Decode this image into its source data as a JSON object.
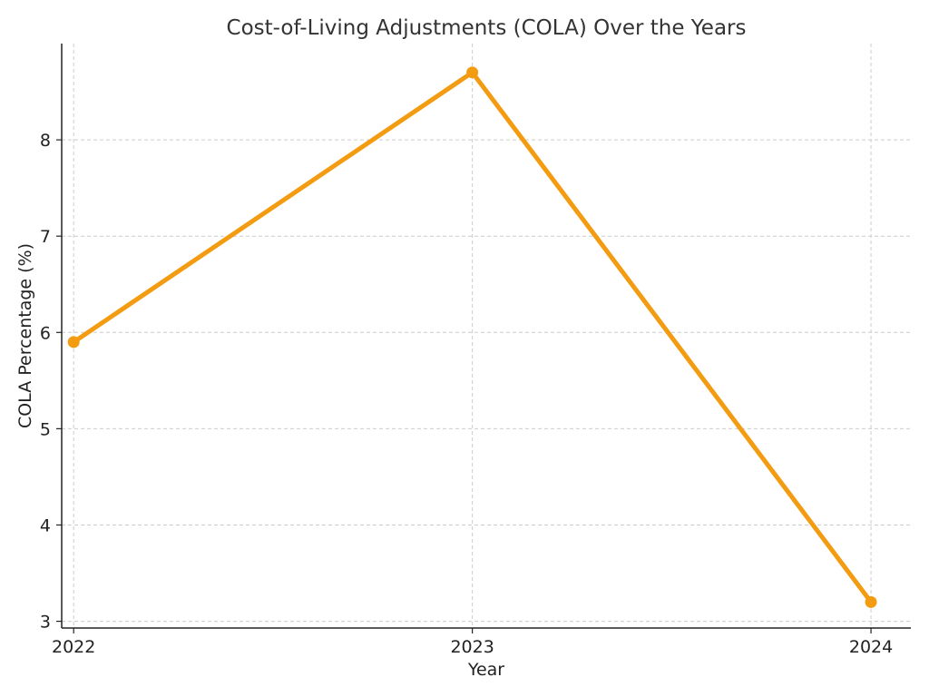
{
  "chart_data": {
    "type": "line",
    "title": "Cost-of-Living Adjustments (COLA) Over the Years",
    "xlabel": "Year",
    "ylabel": "COLA Percentage (%)",
    "categories": [
      "2022",
      "2023",
      "2024"
    ],
    "x": [
      2022,
      2023,
      2024
    ],
    "series": [
      {
        "values": [
          5.9,
          8.7,
          3.2
        ],
        "color": "#F39C12",
        "marker": "circle"
      }
    ],
    "xlim": [
      2021.97,
      2024.1
    ],
    "ylim": [
      2.93,
      9.0
    ],
    "yticks": [
      3,
      4,
      5,
      6,
      7,
      8
    ],
    "grid": true
  }
}
